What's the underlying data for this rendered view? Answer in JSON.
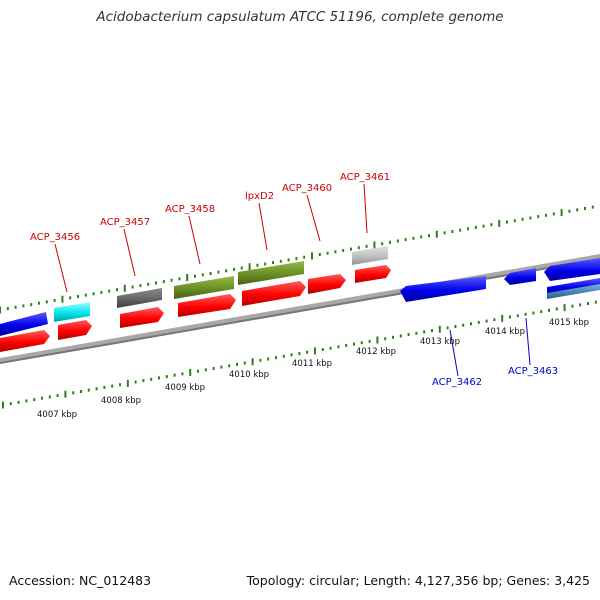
{
  "title": "Acidobacterium capsulatum ATCC 51196, complete genome",
  "footer": {
    "accession": "Accession: NC_012483",
    "topology": "Topology: circular; Length: 4,127,356 bp; Genes: 3,425"
  },
  "colors": {
    "background": "#ffffff",
    "backbone": "#9a9a9a",
    "tick": "#2e7d1e",
    "forward_label": "#cc0000",
    "reverse_label": "#0000cc",
    "red_feature": "#ff0000",
    "blue_feature": "#0000ee",
    "cyan_feature": "#00e5ee",
    "olive_feature": "#6b8e23",
    "dark_gray_feature": "#666666",
    "light_gray_feature": "#c0c0c0",
    "steel_blue_feature": "#4682b4"
  },
  "scale_labels": [
    "4007 kbp",
    "4008 kbp",
    "4009 kbp",
    "4010 kbp",
    "4011 kbp",
    "4012 kbp",
    "4013 kbp",
    "4014 kbp",
    "4015 kbp"
  ],
  "gene_labels": {
    "forward": [
      "ACP_3456",
      "ACP_3457",
      "ACP_3458",
      "lpxD2",
      "ACP_3460",
      "ACP_3461"
    ],
    "reverse": [
      "ACP_3462",
      "ACP_3463"
    ]
  }
}
